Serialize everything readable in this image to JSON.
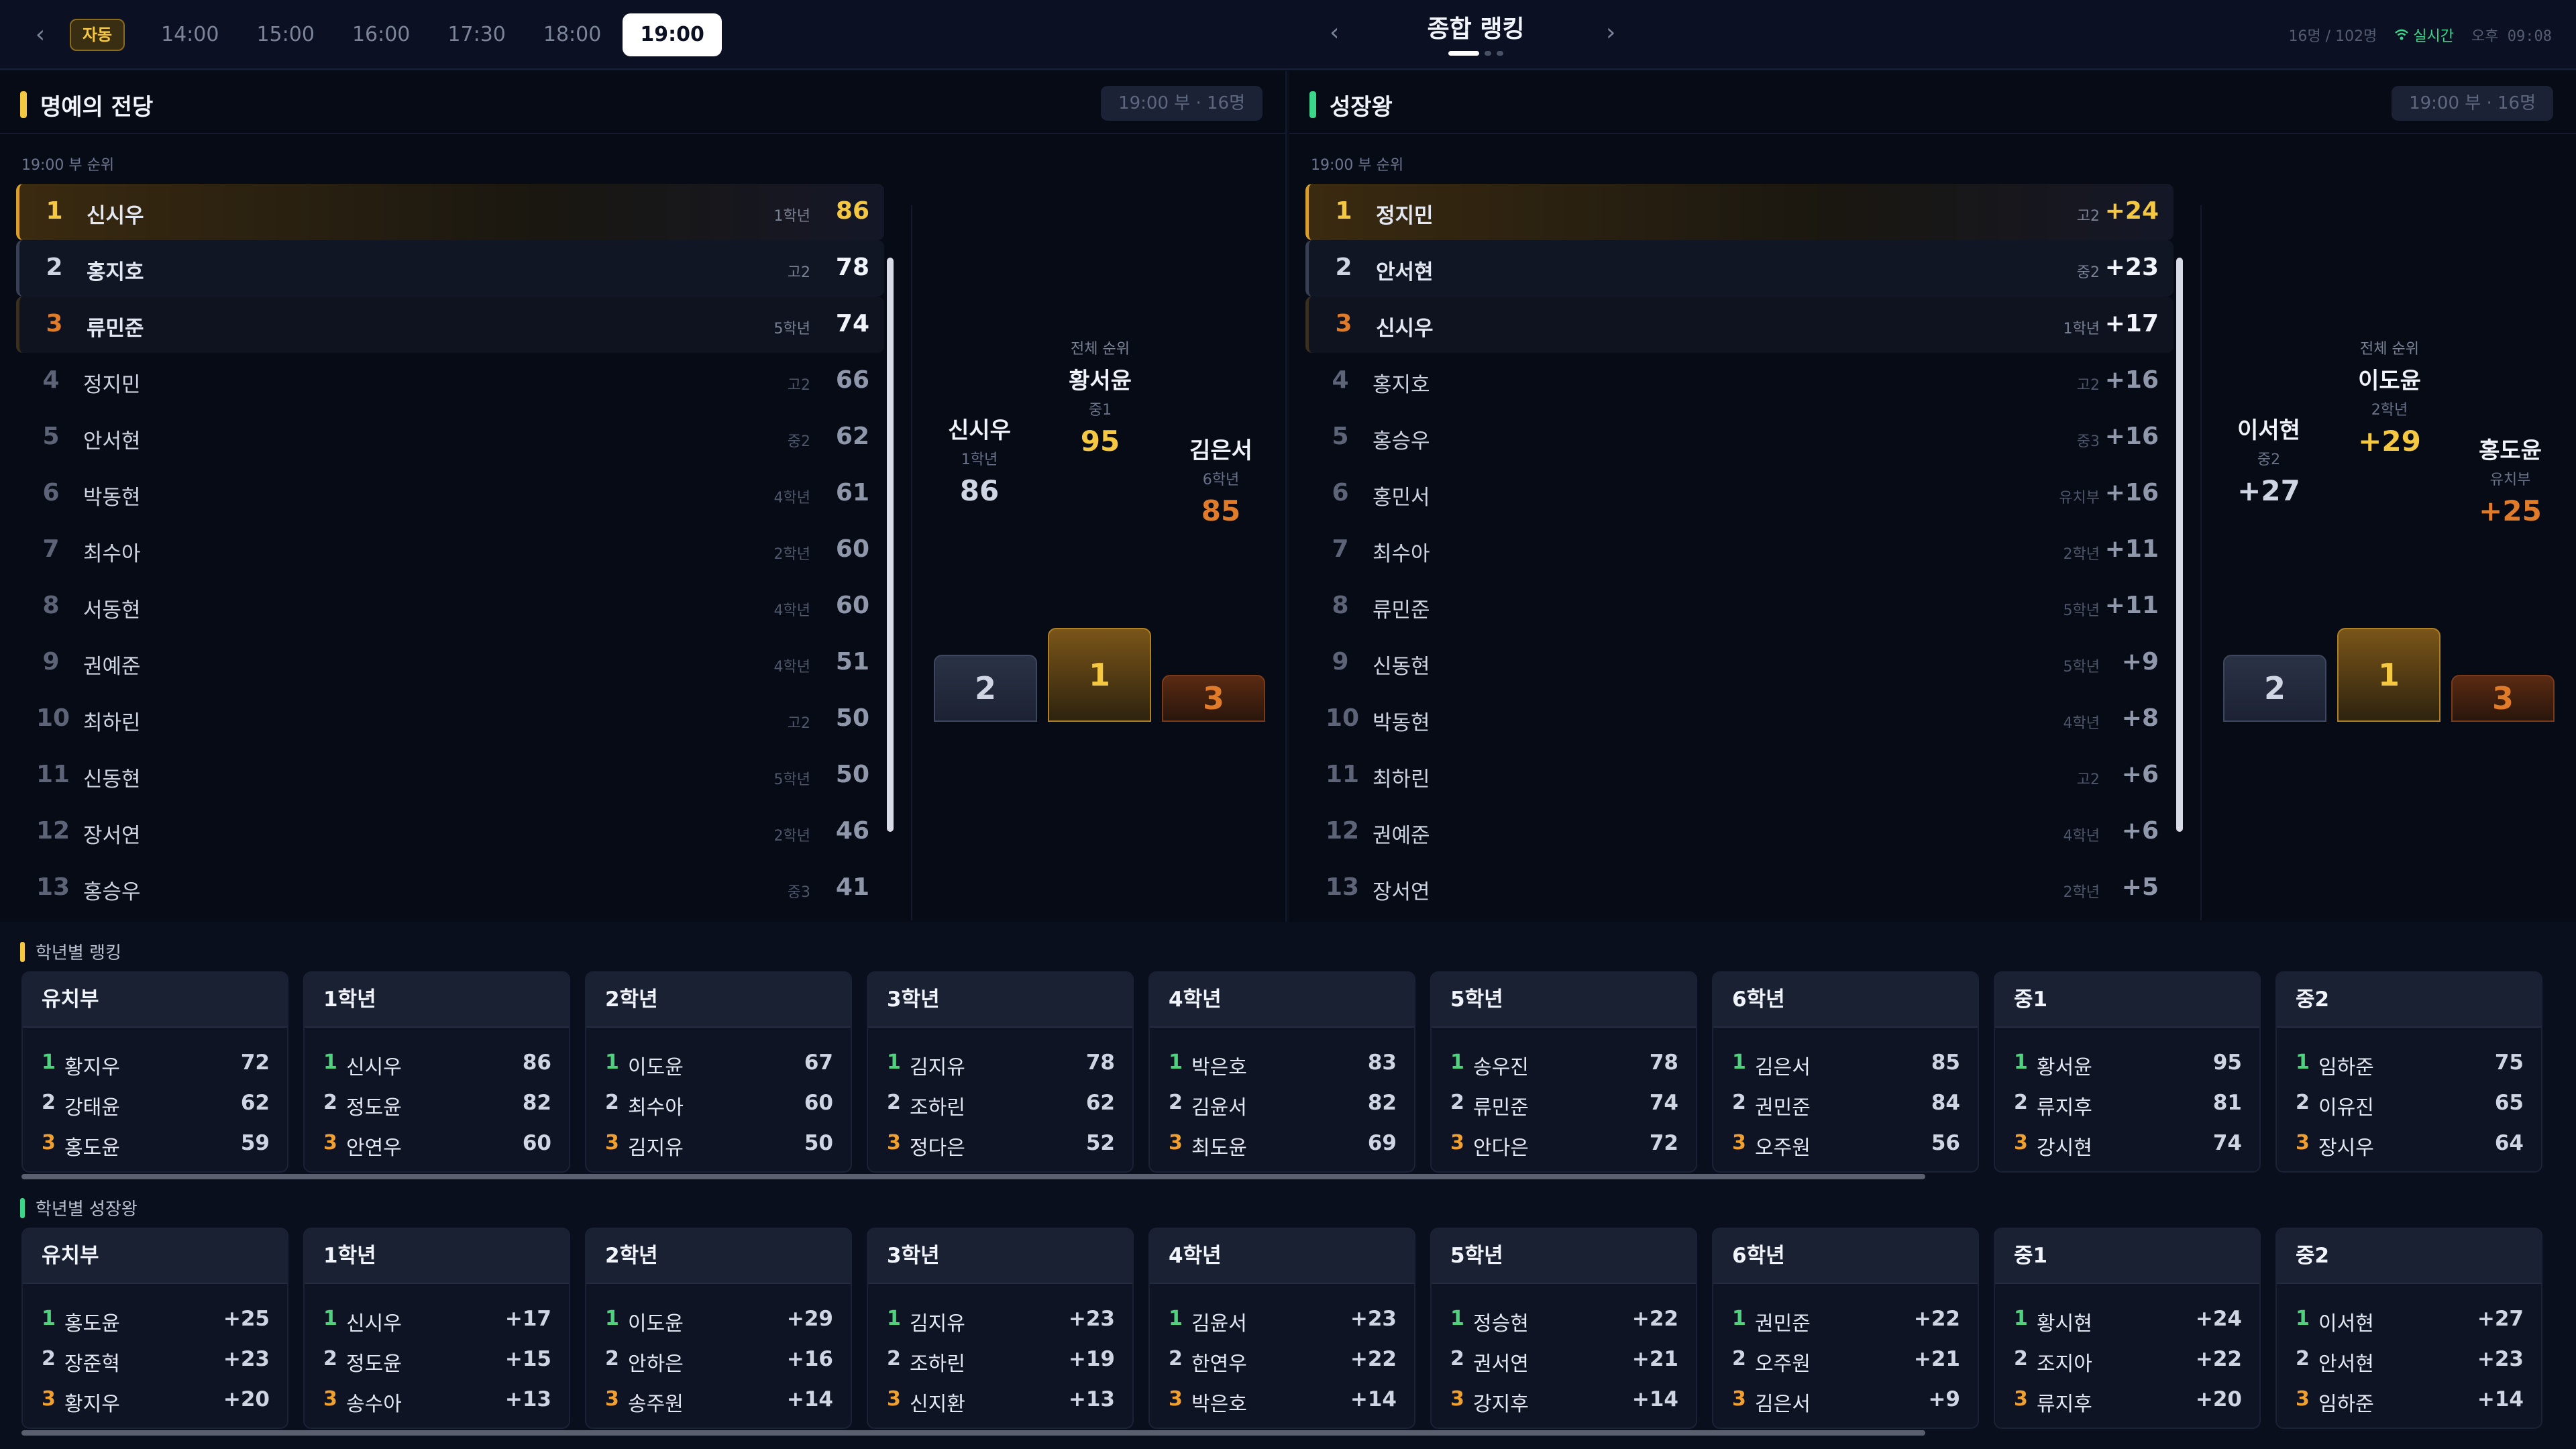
{
  "topbar": {
    "auto_label": "자동",
    "tabs": [
      "14:00",
      "15:00",
      "16:00",
      "17:30",
      "18:00",
      "19:00"
    ],
    "active_tab": "19:00",
    "title": "종합 랭킹",
    "count": "16명 / 102명",
    "live": "실시간",
    "time": "오후 09:08"
  },
  "colors": {
    "gold": "#f5c842",
    "green": "#3bd68a",
    "bronze": "#e07b2a"
  },
  "hall": {
    "title": "명예의 전당",
    "badge": "19:00 부 · 16명",
    "sub": "19:00 부 순위",
    "rows": [
      {
        "rank": "1",
        "name": "신시우",
        "grade": "1학년",
        "score": "86"
      },
      {
        "rank": "2",
        "name": "홍지호",
        "grade": "고2",
        "score": "78"
      },
      {
        "rank": "3",
        "name": "류민준",
        "grade": "5학년",
        "score": "74"
      },
      {
        "rank": "4",
        "name": "정지민",
        "grade": "고2",
        "score": "66"
      },
      {
        "rank": "5",
        "name": "안서현",
        "grade": "중2",
        "score": "62"
      },
      {
        "rank": "6",
        "name": "박동현",
        "grade": "4학년",
        "score": "61"
      },
      {
        "rank": "7",
        "name": "최수아",
        "grade": "2학년",
        "score": "60"
      },
      {
        "rank": "8",
        "name": "서동현",
        "grade": "4학년",
        "score": "60"
      },
      {
        "rank": "9",
        "name": "권예준",
        "grade": "4학년",
        "score": "51"
      },
      {
        "rank": "10",
        "name": "최하린",
        "grade": "고2",
        "score": "50"
      },
      {
        "rank": "11",
        "name": "신동현",
        "grade": "5학년",
        "score": "50"
      },
      {
        "rank": "12",
        "name": "장서연",
        "grade": "2학년",
        "score": "46"
      },
      {
        "rank": "13",
        "name": "홍승우",
        "grade": "중3",
        "score": "41"
      }
    ],
    "podium": {
      "label": "전체 순위",
      "first": {
        "name": "황서윤",
        "grade": "중1",
        "value": "95",
        "place": "1"
      },
      "second": {
        "name": "신시우",
        "grade": "1학년",
        "value": "86",
        "place": "2"
      },
      "third": {
        "name": "김은서",
        "grade": "6학년",
        "value": "85",
        "place": "3"
      }
    }
  },
  "growth": {
    "title": "성장왕",
    "badge": "19:00 부 · 16명",
    "sub": "19:00 부 순위",
    "rows": [
      {
        "rank": "1",
        "name": "정지민",
        "grade": "고2",
        "score": "+24"
      },
      {
        "rank": "2",
        "name": "안서현",
        "grade": "중2",
        "score": "+23"
      },
      {
        "rank": "3",
        "name": "신시우",
        "grade": "1학년",
        "score": "+17"
      },
      {
        "rank": "4",
        "name": "홍지호",
        "grade": "고2",
        "score": "+16"
      },
      {
        "rank": "5",
        "name": "홍승우",
        "grade": "중3",
        "score": "+16"
      },
      {
        "rank": "6",
        "name": "홍민서",
        "grade": "유치부",
        "score": "+16"
      },
      {
        "rank": "7",
        "name": "최수아",
        "grade": "2학년",
        "score": "+11"
      },
      {
        "rank": "8",
        "name": "류민준",
        "grade": "5학년",
        "score": "+11"
      },
      {
        "rank": "9",
        "name": "신동현",
        "grade": "5학년",
        "score": "+9"
      },
      {
        "rank": "10",
        "name": "박동현",
        "grade": "4학년",
        "score": "+8"
      },
      {
        "rank": "11",
        "name": "최하린",
        "grade": "고2",
        "score": "+6"
      },
      {
        "rank": "12",
        "name": "권예준",
        "grade": "4학년",
        "score": "+6"
      },
      {
        "rank": "13",
        "name": "장서연",
        "grade": "2학년",
        "score": "+5"
      }
    ],
    "podium": {
      "label": "전체 순위",
      "first": {
        "name": "이도윤",
        "grade": "2학년",
        "value": "+29",
        "place": "1"
      },
      "second": {
        "name": "이서현",
        "grade": "중2",
        "value": "+27",
        "place": "2"
      },
      "third": {
        "name": "홍도윤",
        "grade": "유치부",
        "value": "+25",
        "place": "3"
      }
    }
  },
  "grade_rank": {
    "label": "학년별 랭킹",
    "cards": [
      {
        "title": "유치부",
        "items": [
          [
            "1",
            "황지우",
            "72"
          ],
          [
            "2",
            "강태윤",
            "62"
          ],
          [
            "3",
            "홍도윤",
            "59"
          ]
        ]
      },
      {
        "title": "1학년",
        "items": [
          [
            "1",
            "신시우",
            "86"
          ],
          [
            "2",
            "정도윤",
            "82"
          ],
          [
            "3",
            "안연우",
            "60"
          ]
        ]
      },
      {
        "title": "2학년",
        "items": [
          [
            "1",
            "이도윤",
            "67"
          ],
          [
            "2",
            "최수아",
            "60"
          ],
          [
            "3",
            "김지유",
            "50"
          ]
        ]
      },
      {
        "title": "3학년",
        "items": [
          [
            "1",
            "김지유",
            "78"
          ],
          [
            "2",
            "조하린",
            "62"
          ],
          [
            "3",
            "정다은",
            "52"
          ]
        ]
      },
      {
        "title": "4학년",
        "items": [
          [
            "1",
            "박은호",
            "83"
          ],
          [
            "2",
            "김윤서",
            "82"
          ],
          [
            "3",
            "최도윤",
            "69"
          ]
        ]
      },
      {
        "title": "5학년",
        "items": [
          [
            "1",
            "송우진",
            "78"
          ],
          [
            "2",
            "류민준",
            "74"
          ],
          [
            "3",
            "안다은",
            "72"
          ]
        ]
      },
      {
        "title": "6학년",
        "items": [
          [
            "1",
            "김은서",
            "85"
          ],
          [
            "2",
            "권민준",
            "84"
          ],
          [
            "3",
            "오주원",
            "56"
          ]
        ]
      },
      {
        "title": "중1",
        "items": [
          [
            "1",
            "황서윤",
            "95"
          ],
          [
            "2",
            "류지후",
            "81"
          ],
          [
            "3",
            "강시현",
            "74"
          ]
        ]
      },
      {
        "title": "중2",
        "items": [
          [
            "1",
            "임하준",
            "75"
          ],
          [
            "2",
            "이유진",
            "65"
          ],
          [
            "3",
            "장시우",
            "64"
          ]
        ]
      }
    ]
  },
  "grade_growth": {
    "label": "학년별 성장왕",
    "cards": [
      {
        "title": "유치부",
        "items": [
          [
            "1",
            "홍도윤",
            "+25"
          ],
          [
            "2",
            "장준혁",
            "+23"
          ],
          [
            "3",
            "황지우",
            "+20"
          ]
        ]
      },
      {
        "title": "1학년",
        "items": [
          [
            "1",
            "신시우",
            "+17"
          ],
          [
            "2",
            "정도윤",
            "+15"
          ],
          [
            "3",
            "송수아",
            "+13"
          ]
        ]
      },
      {
        "title": "2학년",
        "items": [
          [
            "1",
            "이도윤",
            "+29"
          ],
          [
            "2",
            "안하은",
            "+16"
          ],
          [
            "3",
            "송주원",
            "+14"
          ]
        ]
      },
      {
        "title": "3학년",
        "items": [
          [
            "1",
            "김지유",
            "+23"
          ],
          [
            "2",
            "조하린",
            "+19"
          ],
          [
            "3",
            "신지환",
            "+13"
          ]
        ]
      },
      {
        "title": "4학년",
        "items": [
          [
            "1",
            "김윤서",
            "+23"
          ],
          [
            "2",
            "한연우",
            "+22"
          ],
          [
            "3",
            "박은호",
            "+14"
          ]
        ]
      },
      {
        "title": "5학년",
        "items": [
          [
            "1",
            "정승현",
            "+22"
          ],
          [
            "2",
            "권서연",
            "+21"
          ],
          [
            "3",
            "강지후",
            "+14"
          ]
        ]
      },
      {
        "title": "6학년",
        "items": [
          [
            "1",
            "권민준",
            "+22"
          ],
          [
            "2",
            "오주원",
            "+21"
          ],
          [
            "3",
            "김은서",
            "+9"
          ]
        ]
      },
      {
        "title": "중1",
        "items": [
          [
            "1",
            "황시현",
            "+24"
          ],
          [
            "2",
            "조지아",
            "+22"
          ],
          [
            "3",
            "류지후",
            "+20"
          ]
        ]
      },
      {
        "title": "중2",
        "items": [
          [
            "1",
            "이서현",
            "+27"
          ],
          [
            "2",
            "안서현",
            "+23"
          ],
          [
            "3",
            "임하준",
            "+14"
          ]
        ]
      }
    ]
  }
}
